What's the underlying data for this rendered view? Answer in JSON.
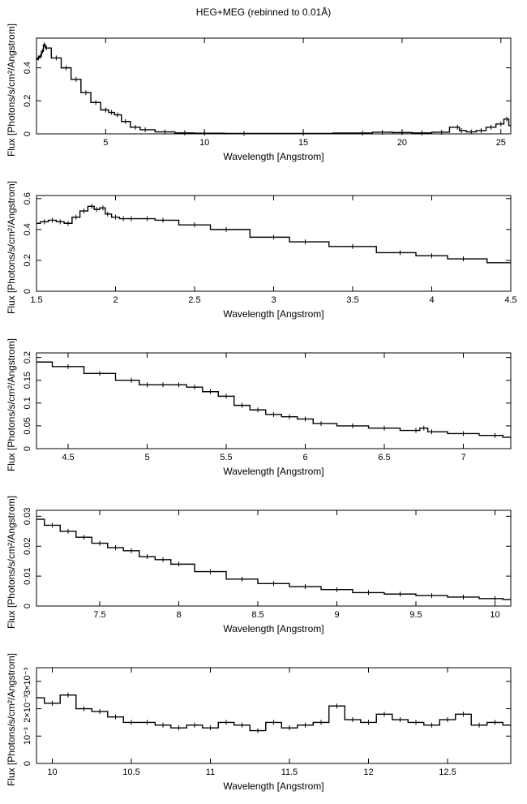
{
  "page": {
    "title": "HEG+MEG (rebinned to 0.01Å)"
  },
  "chart_data": [
    {
      "type": "line",
      "xlabel": "Wavelength [Angstrom]",
      "ylabel": "Flux [Photons/s/cm²/Angstrom]",
      "xlim": [
        1.5,
        25.5
      ],
      "ylim": [
        0,
        0.58
      ],
      "xticks": [
        5,
        10,
        15,
        20,
        25
      ],
      "yticks": [
        0,
        0.2,
        0.4
      ],
      "ytick_labels": [
        "0",
        "0.2",
        "0.4"
      ],
      "series": [
        {
          "x": [
            1.5,
            1.6,
            1.7,
            1.8,
            1.9,
            2.0,
            2.5,
            3.0,
            3.5,
            4.0,
            4.5,
            5.0,
            5.3,
            5.6,
            6.0,
            6.5,
            7.0,
            8.0,
            9.0,
            10.0,
            12.0,
            15.0,
            18.0,
            19.0,
            20.0,
            21.0,
            22.0,
            22.8,
            23.0,
            23.5,
            24.0,
            24.5,
            25.0,
            25.3,
            25.5
          ],
          "y": [
            0.45,
            0.46,
            0.47,
            0.5,
            0.54,
            0.52,
            0.46,
            0.4,
            0.33,
            0.25,
            0.19,
            0.145,
            0.13,
            0.115,
            0.075,
            0.04,
            0.025,
            0.012,
            0.006,
            0.004,
            0.003,
            0.003,
            0.005,
            0.01,
            0.008,
            0.006,
            0.01,
            0.04,
            0.02,
            0.012,
            0.02,
            0.04,
            0.06,
            0.09,
            0.05
          ]
        }
      ]
    },
    {
      "type": "line",
      "xlabel": "Wavelength [Angstrom]",
      "ylabel": "Flux [Photons/s/cm²/Angstrom]",
      "xlim": [
        1.5,
        4.5
      ],
      "ylim": [
        0,
        0.62
      ],
      "xticks": [
        1.5,
        2,
        2.5,
        3,
        3.5,
        4,
        4.5
      ],
      "yticks": [
        0,
        0.2,
        0.4,
        0.6
      ],
      "ytick_labels": [
        "0",
        "0.2",
        "0.4",
        "0.6"
      ],
      "series": [
        {
          "x": [
            1.5,
            1.55,
            1.6,
            1.65,
            1.7,
            1.75,
            1.8,
            1.85,
            1.88,
            1.92,
            1.95,
            2.0,
            2.05,
            2.1,
            2.2,
            2.3,
            2.5,
            2.7,
            3.0,
            3.2,
            3.5,
            3.8,
            4.0,
            4.2,
            4.5
          ],
          "y": [
            0.44,
            0.45,
            0.46,
            0.45,
            0.44,
            0.48,
            0.52,
            0.55,
            0.53,
            0.54,
            0.5,
            0.48,
            0.47,
            0.47,
            0.47,
            0.46,
            0.43,
            0.4,
            0.35,
            0.32,
            0.29,
            0.25,
            0.23,
            0.21,
            0.185
          ]
        }
      ]
    },
    {
      "type": "line",
      "xlabel": "Wavelength [Angstrom]",
      "ylabel": "Flux [Photons/s/cm²/Angstrom]",
      "xlim": [
        4.3,
        7.3
      ],
      "ylim": [
        0,
        0.21
      ],
      "xticks": [
        4.5,
        5,
        5.5,
        6,
        6.5,
        7
      ],
      "yticks": [
        0,
        0.05,
        0.1,
        0.15,
        0.2
      ],
      "ytick_labels": [
        "0",
        "0.05",
        "0.1",
        "0.15",
        "0.2"
      ],
      "series": [
        {
          "x": [
            4.3,
            4.5,
            4.7,
            4.9,
            5.0,
            5.1,
            5.2,
            5.3,
            5.4,
            5.5,
            5.6,
            5.7,
            5.8,
            5.9,
            6.0,
            6.1,
            6.3,
            6.5,
            6.7,
            6.75,
            6.8,
            7.0,
            7.2,
            7.3
          ],
          "y": [
            0.19,
            0.18,
            0.165,
            0.15,
            0.14,
            0.14,
            0.14,
            0.135,
            0.125,
            0.115,
            0.095,
            0.085,
            0.075,
            0.07,
            0.065,
            0.055,
            0.05,
            0.045,
            0.04,
            0.045,
            0.037,
            0.033,
            0.029,
            0.025
          ]
        }
      ]
    },
    {
      "type": "line",
      "xlabel": "Wavelength [Angstrom]",
      "ylabel": "Flux [Photons/s/cm²/Angstrom]",
      "xlim": [
        7.1,
        10.1
      ],
      "ylim": [
        0,
        0.032
      ],
      "xticks": [
        7.5,
        8,
        8.5,
        9,
        9.5,
        10
      ],
      "yticks": [
        0,
        0.01,
        0.02,
        0.03
      ],
      "ytick_labels": [
        "0",
        "0.01",
        "0.02",
        "0.03"
      ],
      "series": [
        {
          "x": [
            7.1,
            7.2,
            7.3,
            7.4,
            7.5,
            7.6,
            7.7,
            7.8,
            7.9,
            8.0,
            8.2,
            8.4,
            8.6,
            8.8,
            9.0,
            9.2,
            9.4,
            9.6,
            9.8,
            10.0,
            10.1
          ],
          "y": [
            0.029,
            0.027,
            0.025,
            0.023,
            0.021,
            0.0195,
            0.0185,
            0.0165,
            0.0155,
            0.014,
            0.0115,
            0.009,
            0.0075,
            0.0065,
            0.0055,
            0.0045,
            0.004,
            0.0035,
            0.003,
            0.0025,
            0.0022
          ]
        }
      ]
    },
    {
      "type": "line",
      "xlabel": "Wavelength [Angstrom]",
      "ylabel": "Flux [Photons/s/cm²/Angstrom]",
      "xlim": [
        9.9,
        12.9
      ],
      "ylim": [
        0,
        0.0035
      ],
      "xticks": [
        10,
        10.5,
        11,
        11.5,
        12,
        12.5
      ],
      "yticks": [
        0,
        0.001,
        0.002,
        0.003
      ],
      "ytick_labels": [
        "0",
        "10⁻³",
        "2×10⁻³",
        "3×10⁻³"
      ],
      "series": [
        {
          "x": [
            9.9,
            10.0,
            10.1,
            10.2,
            10.3,
            10.4,
            10.5,
            10.6,
            10.7,
            10.8,
            10.9,
            11.0,
            11.1,
            11.2,
            11.3,
            11.4,
            11.5,
            11.6,
            11.7,
            11.8,
            11.9,
            12.0,
            12.1,
            12.2,
            12.3,
            12.4,
            12.5,
            12.6,
            12.7,
            12.8,
            12.9
          ],
          "y": [
            0.0024,
            0.0022,
            0.0025,
            0.002,
            0.0019,
            0.0017,
            0.0015,
            0.0015,
            0.0014,
            0.0013,
            0.0014,
            0.0013,
            0.0015,
            0.0014,
            0.0012,
            0.0015,
            0.0013,
            0.0014,
            0.0015,
            0.0021,
            0.0016,
            0.0015,
            0.0018,
            0.0016,
            0.0015,
            0.0014,
            0.0016,
            0.0018,
            0.0014,
            0.0015,
            0.0014
          ]
        }
      ]
    }
  ]
}
